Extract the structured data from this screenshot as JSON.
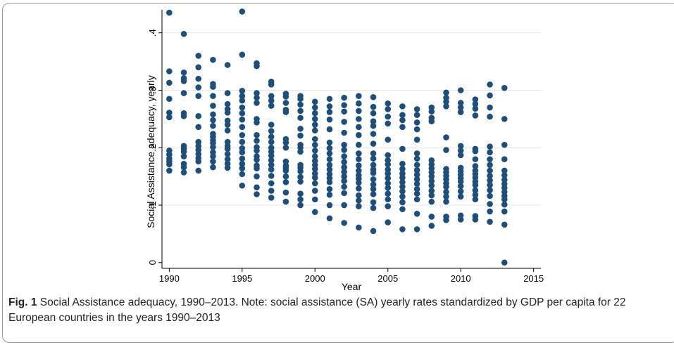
{
  "caption": {
    "label": "Fig. 1",
    "text": "Social Assistance adequacy, 1990–2013. Note: social assistance (SA) yearly rates standardized by GDP per capita for 22 European countries in the years 1990–2013"
  },
  "chart_data": {
    "type": "scatter",
    "title": "",
    "xlabel": "Year",
    "ylabel": "Social Assistance adequacy, yearly",
    "xlim": [
      1989.5,
      2015.5
    ],
    "ylim": [
      -0.01,
      0.44
    ],
    "xticks": [
      1990,
      1995,
      2000,
      2005,
      2010,
      2015
    ],
    "xtick_labels": [
      "1990",
      "1995",
      "2000",
      "2005",
      "2010",
      "2015"
    ],
    "yticks": [
      0,
      0.1,
      0.2,
      0.3,
      0.4
    ],
    "ytick_labels": [
      "0",
      ".1",
      ".2",
      ".3",
      ".4"
    ],
    "grid": "horizontal",
    "marker_color": "#1f4e79",
    "points": [
      [
        1990,
        0.435
      ],
      [
        1990,
        0.333
      ],
      [
        1990,
        0.313
      ],
      [
        1990,
        0.285
      ],
      [
        1990,
        0.261
      ],
      [
        1990,
        0.253
      ],
      [
        1990,
        0.195
      ],
      [
        1990,
        0.188
      ],
      [
        1990,
        0.181
      ],
      [
        1990,
        0.176
      ],
      [
        1990,
        0.171
      ],
      [
        1990,
        0.16
      ],
      [
        1991,
        0.398
      ],
      [
        1991,
        0.331
      ],
      [
        1991,
        0.321
      ],
      [
        1991,
        0.316
      ],
      [
        1991,
        0.295
      ],
      [
        1991,
        0.26
      ],
      [
        1991,
        0.255
      ],
      [
        1991,
        0.203
      ],
      [
        1991,
        0.198
      ],
      [
        1991,
        0.193
      ],
      [
        1991,
        0.185
      ],
      [
        1991,
        0.172
      ],
      [
        1991,
        0.166
      ],
      [
        1991,
        0.157
      ],
      [
        1992,
        0.36
      ],
      [
        1992,
        0.34
      ],
      [
        1992,
        0.32
      ],
      [
        1992,
        0.305
      ],
      [
        1992,
        0.29
      ],
      [
        1992,
        0.255
      ],
      [
        1992,
        0.236
      ],
      [
        1992,
        0.21
      ],
      [
        1992,
        0.203
      ],
      [
        1992,
        0.196
      ],
      [
        1992,
        0.189
      ],
      [
        1992,
        0.182
      ],
      [
        1992,
        0.176
      ],
      [
        1992,
        0.16
      ],
      [
        1993,
        0.353
      ],
      [
        1993,
        0.311
      ],
      [
        1993,
        0.306
      ],
      [
        1993,
        0.29
      ],
      [
        1993,
        0.273
      ],
      [
        1993,
        0.258
      ],
      [
        1993,
        0.248
      ],
      [
        1993,
        0.238
      ],
      [
        1993,
        0.224
      ],
      [
        1993,
        0.219
      ],
      [
        1993,
        0.213
      ],
      [
        1993,
        0.208
      ],
      [
        1993,
        0.201
      ],
      [
        1993,
        0.192
      ],
      [
        1993,
        0.185
      ],
      [
        1993,
        0.176
      ],
      [
        1993,
        0.166
      ],
      [
        1994,
        0.344
      ],
      [
        1994,
        0.295
      ],
      [
        1994,
        0.276
      ],
      [
        1994,
        0.267
      ],
      [
        1994,
        0.261
      ],
      [
        1994,
        0.247
      ],
      [
        1994,
        0.24
      ],
      [
        1994,
        0.23
      ],
      [
        1994,
        0.21
      ],
      [
        1994,
        0.203
      ],
      [
        1994,
        0.198
      ],
      [
        1994,
        0.189
      ],
      [
        1994,
        0.18
      ],
      [
        1994,
        0.172
      ],
      [
        1994,
        0.165
      ],
      [
        1995,
        0.437
      ],
      [
        1995,
        0.362
      ],
      [
        1995,
        0.299
      ],
      [
        1995,
        0.29
      ],
      [
        1995,
        0.282
      ],
      [
        1995,
        0.27
      ],
      [
        1995,
        0.26
      ],
      [
        1995,
        0.249
      ],
      [
        1995,
        0.236
      ],
      [
        1995,
        0.222
      ],
      [
        1995,
        0.21
      ],
      [
        1995,
        0.199
      ],
      [
        1995,
        0.192
      ],
      [
        1995,
        0.181
      ],
      [
        1995,
        0.172
      ],
      [
        1995,
        0.164
      ],
      [
        1995,
        0.154
      ],
      [
        1995,
        0.134
      ],
      [
        1996,
        0.347
      ],
      [
        1996,
        0.342
      ],
      [
        1996,
        0.295
      ],
      [
        1996,
        0.287
      ],
      [
        1996,
        0.278
      ],
      [
        1996,
        0.25
      ],
      [
        1996,
        0.244
      ],
      [
        1996,
        0.222
      ],
      [
        1996,
        0.212
      ],
      [
        1996,
        0.201
      ],
      [
        1996,
        0.195
      ],
      [
        1996,
        0.185
      ],
      [
        1996,
        0.179
      ],
      [
        1996,
        0.169
      ],
      [
        1996,
        0.164
      ],
      [
        1996,
        0.15
      ],
      [
        1996,
        0.131
      ],
      [
        1996,
        0.119
      ],
      [
        1997,
        0.315
      ],
      [
        1997,
        0.31
      ],
      [
        1997,
        0.29
      ],
      [
        1997,
        0.282
      ],
      [
        1997,
        0.273
      ],
      [
        1997,
        0.24
      ],
      [
        1997,
        0.229
      ],
      [
        1997,
        0.219
      ],
      [
        1997,
        0.21
      ],
      [
        1997,
        0.2
      ],
      [
        1997,
        0.193
      ],
      [
        1997,
        0.186
      ],
      [
        1997,
        0.178
      ],
      [
        1997,
        0.17
      ],
      [
        1997,
        0.162
      ],
      [
        1997,
        0.151
      ],
      [
        1997,
        0.138
      ],
      [
        1997,
        0.125
      ],
      [
        1997,
        0.113
      ],
      [
        1998,
        0.294
      ],
      [
        1998,
        0.289
      ],
      [
        1998,
        0.278
      ],
      [
        1998,
        0.266
      ],
      [
        1998,
        0.262
      ],
      [
        1998,
        0.215
      ],
      [
        1998,
        0.209
      ],
      [
        1998,
        0.2
      ],
      [
        1998,
        0.176
      ],
      [
        1998,
        0.169
      ],
      [
        1998,
        0.165
      ],
      [
        1998,
        0.16
      ],
      [
        1998,
        0.15
      ],
      [
        1998,
        0.14
      ],
      [
        1998,
        0.122
      ],
      [
        1998,
        0.106
      ],
      [
        1999,
        0.29
      ],
      [
        1999,
        0.285
      ],
      [
        1999,
        0.275
      ],
      [
        1999,
        0.264
      ],
      [
        1999,
        0.252
      ],
      [
        1999,
        0.233
      ],
      [
        1999,
        0.221
      ],
      [
        1999,
        0.205
      ],
      [
        1999,
        0.2
      ],
      [
        1999,
        0.193
      ],
      [
        1999,
        0.17
      ],
      [
        1999,
        0.165
      ],
      [
        1999,
        0.159
      ],
      [
        1999,
        0.149
      ],
      [
        1999,
        0.141
      ],
      [
        1999,
        0.12
      ],
      [
        1999,
        0.11
      ],
      [
        1999,
        0.1
      ],
      [
        2000,
        0.28
      ],
      [
        2000,
        0.27
      ],
      [
        2000,
        0.26
      ],
      [
        2000,
        0.25
      ],
      [
        2000,
        0.24
      ],
      [
        2000,
        0.23
      ],
      [
        2000,
        0.215
      ],
      [
        2000,
        0.205
      ],
      [
        2000,
        0.195
      ],
      [
        2000,
        0.185
      ],
      [
        2000,
        0.177
      ],
      [
        2000,
        0.17
      ],
      [
        2000,
        0.163
      ],
      [
        2000,
        0.155
      ],
      [
        2000,
        0.148
      ],
      [
        2000,
        0.138
      ],
      [
        2000,
        0.125
      ],
      [
        2000,
        0.11
      ],
      [
        2000,
        0.088
      ],
      [
        2001,
        0.285
      ],
      [
        2001,
        0.272
      ],
      [
        2001,
        0.262
      ],
      [
        2001,
        0.249
      ],
      [
        2001,
        0.232
      ],
      [
        2001,
        0.209
      ],
      [
        2001,
        0.199
      ],
      [
        2001,
        0.19
      ],
      [
        2001,
        0.18
      ],
      [
        2001,
        0.17
      ],
      [
        2001,
        0.162
      ],
      [
        2001,
        0.154
      ],
      [
        2001,
        0.147
      ],
      [
        2001,
        0.14
      ],
      [
        2001,
        0.128
      ],
      [
        2001,
        0.118
      ],
      [
        2001,
        0.1
      ],
      [
        2001,
        0.077
      ],
      [
        2002,
        0.287
      ],
      [
        2002,
        0.274
      ],
      [
        2002,
        0.263
      ],
      [
        2002,
        0.245
      ],
      [
        2002,
        0.226
      ],
      [
        2002,
        0.205
      ],
      [
        2002,
        0.196
      ],
      [
        2002,
        0.185
      ],
      [
        2002,
        0.175
      ],
      [
        2002,
        0.166
      ],
      [
        2002,
        0.158
      ],
      [
        2002,
        0.15
      ],
      [
        2002,
        0.142
      ],
      [
        2002,
        0.132
      ],
      [
        2002,
        0.121
      ],
      [
        2002,
        0.1
      ],
      [
        2002,
        0.069
      ],
      [
        2003,
        0.29
      ],
      [
        2003,
        0.277
      ],
      [
        2003,
        0.264
      ],
      [
        2003,
        0.25
      ],
      [
        2003,
        0.236
      ],
      [
        2003,
        0.222
      ],
      [
        2003,
        0.205
      ],
      [
        2003,
        0.19
      ],
      [
        2003,
        0.18
      ],
      [
        2003,
        0.169
      ],
      [
        2003,
        0.16
      ],
      [
        2003,
        0.152
      ],
      [
        2003,
        0.146
      ],
      [
        2003,
        0.139
      ],
      [
        2003,
        0.129
      ],
      [
        2003,
        0.117
      ],
      [
        2003,
        0.108
      ],
      [
        2003,
        0.098
      ],
      [
        2003,
        0.061
      ],
      [
        2004,
        0.288
      ],
      [
        2004,
        0.271
      ],
      [
        2004,
        0.26
      ],
      [
        2004,
        0.246
      ],
      [
        2004,
        0.238
      ],
      [
        2004,
        0.224
      ],
      [
        2004,
        0.207
      ],
      [
        2004,
        0.19
      ],
      [
        2004,
        0.181
      ],
      [
        2004,
        0.17
      ],
      [
        2004,
        0.162
      ],
      [
        2004,
        0.156
      ],
      [
        2004,
        0.145
      ],
      [
        2004,
        0.136
      ],
      [
        2004,
        0.128
      ],
      [
        2004,
        0.119
      ],
      [
        2004,
        0.105
      ],
      [
        2004,
        0.095
      ],
      [
        2004,
        0.055
      ],
      [
        2005,
        0.277
      ],
      [
        2005,
        0.267
      ],
      [
        2005,
        0.254
      ],
      [
        2005,
        0.242
      ],
      [
        2005,
        0.214
      ],
      [
        2005,
        0.187
      ],
      [
        2005,
        0.178
      ],
      [
        2005,
        0.171
      ],
      [
        2005,
        0.162
      ],
      [
        2005,
        0.155
      ],
      [
        2005,
        0.147
      ],
      [
        2005,
        0.138
      ],
      [
        2005,
        0.13
      ],
      [
        2005,
        0.12
      ],
      [
        2005,
        0.11
      ],
      [
        2005,
        0.098
      ],
      [
        2005,
        0.07
      ],
      [
        2006,
        0.272
      ],
      [
        2006,
        0.257
      ],
      [
        2006,
        0.248
      ],
      [
        2006,
        0.236
      ],
      [
        2006,
        0.198
      ],
      [
        2006,
        0.172
      ],
      [
        2006,
        0.163
      ],
      [
        2006,
        0.155
      ],
      [
        2006,
        0.148
      ],
      [
        2006,
        0.14
      ],
      [
        2006,
        0.132
      ],
      [
        2006,
        0.124
      ],
      [
        2006,
        0.115
      ],
      [
        2006,
        0.105
      ],
      [
        2006,
        0.093
      ],
      [
        2006,
        0.058
      ],
      [
        2007,
        0.267
      ],
      [
        2007,
        0.257
      ],
      [
        2007,
        0.244
      ],
      [
        2007,
        0.232
      ],
      [
        2007,
        0.214
      ],
      [
        2007,
        0.19
      ],
      [
        2007,
        0.181
      ],
      [
        2007,
        0.17
      ],
      [
        2007,
        0.161
      ],
      [
        2007,
        0.153
      ],
      [
        2007,
        0.145
      ],
      [
        2007,
        0.137
      ],
      [
        2007,
        0.128
      ],
      [
        2007,
        0.12
      ],
      [
        2007,
        0.11
      ],
      [
        2007,
        0.085
      ],
      [
        2007,
        0.058
      ],
      [
        2008,
        0.27
      ],
      [
        2008,
        0.263
      ],
      [
        2008,
        0.252
      ],
      [
        2008,
        0.246
      ],
      [
        2008,
        0.178
      ],
      [
        2008,
        0.171
      ],
      [
        2008,
        0.164
      ],
      [
        2008,
        0.157
      ],
      [
        2008,
        0.15
      ],
      [
        2008,
        0.142
      ],
      [
        2008,
        0.134
      ],
      [
        2008,
        0.125
      ],
      [
        2008,
        0.117
      ],
      [
        2008,
        0.106
      ],
      [
        2008,
        0.08
      ],
      [
        2008,
        0.064
      ],
      [
        2009,
        0.296
      ],
      [
        2009,
        0.287
      ],
      [
        2009,
        0.28
      ],
      [
        2009,
        0.272
      ],
      [
        2009,
        0.218
      ],
      [
        2009,
        0.196
      ],
      [
        2009,
        0.163
      ],
      [
        2009,
        0.157
      ],
      [
        2009,
        0.151
      ],
      [
        2009,
        0.145
      ],
      [
        2009,
        0.138
      ],
      [
        2009,
        0.132
      ],
      [
        2009,
        0.123
      ],
      [
        2009,
        0.115
      ],
      [
        2009,
        0.106
      ],
      [
        2009,
        0.08
      ],
      [
        2009,
        0.074
      ],
      [
        2010,
        0.3
      ],
      [
        2010,
        0.278
      ],
      [
        2010,
        0.27
      ],
      [
        2010,
        0.262
      ],
      [
        2010,
        0.203
      ],
      [
        2010,
        0.195
      ],
      [
        2010,
        0.187
      ],
      [
        2010,
        0.165
      ],
      [
        2010,
        0.159
      ],
      [
        2010,
        0.153
      ],
      [
        2010,
        0.147
      ],
      [
        2010,
        0.141
      ],
      [
        2010,
        0.133
      ],
      [
        2010,
        0.124
      ],
      [
        2010,
        0.115
      ],
      [
        2010,
        0.082
      ],
      [
        2010,
        0.075
      ],
      [
        2011,
        0.284
      ],
      [
        2011,
        0.276
      ],
      [
        2011,
        0.268
      ],
      [
        2011,
        0.256
      ],
      [
        2011,
        0.198
      ],
      [
        2011,
        0.194
      ],
      [
        2011,
        0.18
      ],
      [
        2011,
        0.168
      ],
      [
        2011,
        0.16
      ],
      [
        2011,
        0.154
      ],
      [
        2011,
        0.148
      ],
      [
        2011,
        0.141
      ],
      [
        2011,
        0.135
      ],
      [
        2011,
        0.126
      ],
      [
        2011,
        0.118
      ],
      [
        2011,
        0.11
      ],
      [
        2011,
        0.081
      ],
      [
        2011,
        0.075
      ],
      [
        2012,
        0.31
      ],
      [
        2012,
        0.291
      ],
      [
        2012,
        0.27
      ],
      [
        2012,
        0.254
      ],
      [
        2012,
        0.202
      ],
      [
        2012,
        0.192
      ],
      [
        2012,
        0.18
      ],
      [
        2012,
        0.17
      ],
      [
        2012,
        0.16
      ],
      [
        2012,
        0.151
      ],
      [
        2012,
        0.143
      ],
      [
        2012,
        0.135
      ],
      [
        2012,
        0.126
      ],
      [
        2012,
        0.116
      ],
      [
        2012,
        0.102
      ],
      [
        2012,
        0.089
      ],
      [
        2012,
        0.071
      ],
      [
        2013,
        0.304
      ],
      [
        2013,
        0.25
      ],
      [
        2013,
        0.205
      ],
      [
        2013,
        0.18
      ],
      [
        2013,
        0.16
      ],
      [
        2013,
        0.152
      ],
      [
        2013,
        0.144
      ],
      [
        2013,
        0.137
      ],
      [
        2013,
        0.13
      ],
      [
        2013,
        0.123
      ],
      [
        2013,
        0.116
      ],
      [
        2013,
        0.11
      ],
      [
        2013,
        0.101
      ],
      [
        2013,
        0.089
      ],
      [
        2013,
        0.066
      ],
      [
        2013,
        0.0
      ]
    ]
  }
}
